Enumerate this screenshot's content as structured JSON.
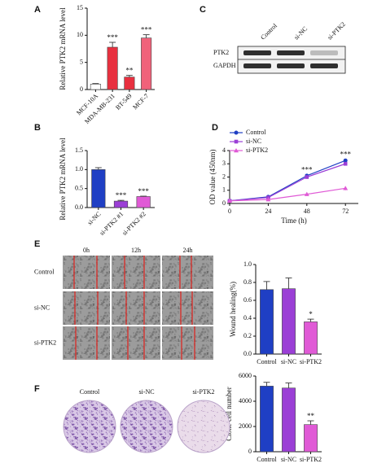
{
  "chart_data": [
    {
      "type": "bar",
      "panel": "A",
      "ylabel": "Relative PTK2 mRNA level",
      "categories": [
        "MCF-10A",
        "MDA-MB-231",
        "BT-549",
        "MCF-7"
      ],
      "values": [
        1,
        7.8,
        2.3,
        9.5
      ],
      "errors": [
        0.1,
        0.9,
        0.3,
        0.6
      ],
      "colors": [
        "#ffffff",
        "#e8303f",
        "#e8303f",
        "#f0627a"
      ],
      "annotations": [
        null,
        "***",
        "**",
        "***"
      ],
      "ylim": [
        0,
        15
      ],
      "yticks": [
        0,
        5,
        10,
        15
      ]
    },
    {
      "type": "bar",
      "panel": "B",
      "ylabel": "Relative PTK2 mRNA level",
      "categories": [
        "si-NC",
        "si-PTK2 #1",
        "si-PTK2 #2"
      ],
      "values": [
        1.0,
        0.17,
        0.29
      ],
      "errors": [
        0.05,
        0.02,
        0.01
      ],
      "colors": [
        "#1f3fc4",
        "#9b3fd6",
        "#e05ad6"
      ],
      "annotations": [
        null,
        "***",
        "***"
      ],
      "ylim": [
        0,
        1.5
      ],
      "yticks": [
        {
          "value": 0,
          "label": "0.0"
        },
        0.5,
        {
          "value": 1,
          "label": "1.0"
        },
        1.5
      ]
    },
    {
      "type": "line",
      "panel": "D",
      "xlabel": "Time (h)",
      "ylabel": "OD value (450nm)",
      "x": [
        0,
        24,
        48,
        72
      ],
      "series": [
        {
          "name": "Control",
          "color": "#1f3fc4",
          "marker": "circle",
          "values": [
            0.2,
            0.5,
            2.1,
            3.25
          ],
          "errors": [
            0.03,
            0.05,
            0.08,
            0.1
          ]
        },
        {
          "name": "si-NC",
          "color": "#9b3fd6",
          "marker": "square",
          "values": [
            0.2,
            0.45,
            2.0,
            3.0
          ],
          "errors": [
            0.03,
            0.05,
            0.08,
            0.1
          ]
        },
        {
          "name": "si-PTK2",
          "color": "#e05ad6",
          "marker": "triangle",
          "values": [
            0.2,
            0.3,
            0.7,
            1.15
          ],
          "errors": [
            0.03,
            0.04,
            0.08,
            0.15
          ]
        }
      ],
      "annotations": [
        null,
        null,
        "***",
        "***"
      ],
      "xlim": [
        0,
        80
      ],
      "xticks": [
        0,
        24,
        48,
        72
      ],
      "ylim": [
        0,
        4
      ],
      "yticks": [
        0,
        1,
        2,
        3,
        4
      ]
    },
    {
      "type": "bar",
      "ylabel": "Wound healing(%)",
      "categories": [
        "Control",
        "si-NC",
        "si-PTK2"
      ],
      "values": [
        0.72,
        0.73,
        0.36
      ],
      "errors": [
        0.09,
        0.12,
        0.03
      ],
      "colors": [
        "#1f3fc4",
        "#9b3fd6",
        "#e05ad6"
      ],
      "annotations": [
        null,
        null,
        "*"
      ],
      "ylim": [
        0,
        1
      ],
      "yticks": [
        {
          "value": 0,
          "label": "0.0"
        },
        0.2,
        0.4,
        0.6,
        0.8,
        {
          "value": 1,
          "label": "1.0"
        }
      ]
    },
    {
      "type": "bar",
      "ylabel": "Clone cell number",
      "categories": [
        "Control",
        "si-NC",
        "si-PTK2"
      ],
      "values": [
        5200,
        5050,
        2150
      ],
      "errors": [
        300,
        400,
        300
      ],
      "colors": [
        "#1f3fc4",
        "#9b3fd6",
        "#e05ad6"
      ],
      "annotations": [
        null,
        null,
        "**"
      ],
      "ylim": [
        0,
        6000
      ],
      "yticks": [
        0,
        2000,
        4000,
        6000
      ]
    }
  ],
  "blot": {
    "panel": "C",
    "lanes": [
      "Control",
      "si-NC",
      "si-PTK2"
    ],
    "rows": [
      "PTK2",
      "GAPDH"
    ]
  },
  "wound": {
    "panel": "E",
    "columns": [
      "0h",
      "12h",
      "24h"
    ],
    "rows": [
      "Control",
      "si-NC",
      "si-PTK2"
    ]
  },
  "colony": {
    "panel": "F",
    "labels": [
      "Control",
      "si-NC",
      "si-PTK2"
    ]
  }
}
